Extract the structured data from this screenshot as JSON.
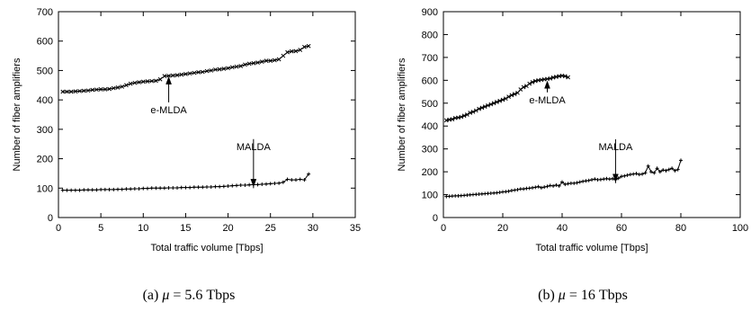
{
  "chart_data": [
    {
      "type": "line",
      "caption_prefix": "(a) ",
      "caption_mu": "μ",
      "caption_suffix": " = 5.6 Tbps",
      "xlabel": "Total traffic volume [Tbps]",
      "ylabel": "Number of fiber amplifiers",
      "xlim": [
        0,
        35
      ],
      "ylim": [
        0,
        700
      ],
      "xticks": [
        0,
        5,
        10,
        15,
        20,
        25,
        30,
        35
      ],
      "yticks": [
        0,
        100,
        200,
        300,
        400,
        500,
        600,
        700
      ],
      "grid": false,
      "series": [
        {
          "marker": "x",
          "color": "#000000",
          "x": [
            0.5,
            1.0,
            1.5,
            2.0,
            2.5,
            3.0,
            3.5,
            4.0,
            4.5,
            5.0,
            5.5,
            6.0,
            6.5,
            7.0,
            7.5,
            8.0,
            8.5,
            9.0,
            9.5,
            10.0,
            10.5,
            11.0,
            11.5,
            12.0,
            12.5,
            13.0,
            13.5,
            14.0,
            14.5,
            15.0,
            15.5,
            16.0,
            16.5,
            17.0,
            17.5,
            18.0,
            18.5,
            19.0,
            19.5,
            20.0,
            20.5,
            21.0,
            21.5,
            22.0,
            22.5,
            23.0,
            23.5,
            24.0,
            24.5,
            25.0,
            25.5,
            26.0,
            26.5,
            27.0,
            27.5,
            28.0,
            28.5,
            29.0,
            29.5
          ],
          "y": [
            428,
            428,
            428,
            429,
            430,
            431,
            432,
            434,
            435,
            436,
            436,
            437,
            440,
            442,
            445,
            450,
            455,
            458,
            460,
            462,
            463,
            464,
            465,
            470,
            481,
            482,
            483,
            484,
            486,
            488,
            490,
            492,
            494,
            495,
            498,
            500,
            503,
            504,
            506,
            508,
            511,
            513,
            515,
            520,
            523,
            525,
            527,
            530,
            533,
            533,
            535,
            538,
            550,
            562,
            565,
            566,
            570,
            580,
            583
          ]
        },
        {
          "marker": "+",
          "color": "#000000",
          "x": [
            0.5,
            1.0,
            1.5,
            2.0,
            2.5,
            3.0,
            3.5,
            4.0,
            4.5,
            5.0,
            5.5,
            6.0,
            6.5,
            7.0,
            7.5,
            8.0,
            8.5,
            9.0,
            9.5,
            10.0,
            10.5,
            11.0,
            11.5,
            12.0,
            12.5,
            13.0,
            13.5,
            14.0,
            14.5,
            15.0,
            15.5,
            16.0,
            16.5,
            17.0,
            17.5,
            18.0,
            18.5,
            19.0,
            19.5,
            20.0,
            20.5,
            21.0,
            21.5,
            22.0,
            22.5,
            23.0,
            23.5,
            24.0,
            24.5,
            25.0,
            25.5,
            26.0,
            26.5,
            27.0,
            27.5,
            28.0,
            28.5,
            29.0,
            29.5
          ],
          "y": [
            93,
            93,
            93,
            93,
            93,
            94,
            94,
            94,
            94,
            95,
            95,
            95,
            95,
            96,
            96,
            97,
            97,
            98,
            98,
            99,
            99,
            100,
            100,
            100,
            100,
            101,
            101,
            101,
            102,
            102,
            102,
            103,
            103,
            103,
            104,
            104,
            105,
            105,
            106,
            107,
            108,
            109,
            110,
            110,
            111,
            112,
            112,
            113,
            114,
            115,
            116,
            117,
            120,
            130,
            128,
            128,
            130,
            128,
            148
          ]
        }
      ],
      "annotations": [
        {
          "text": "e-MLDA",
          "x": 13,
          "y": 484,
          "tx": 13,
          "ty": 355
        },
        {
          "text": "MALDA",
          "x": 23,
          "y": 112,
          "tx": 23,
          "ty": 230
        }
      ]
    },
    {
      "type": "line",
      "caption_prefix": "(b) ",
      "caption_mu": "μ",
      "caption_suffix": " = 16 Tbps",
      "xlabel": "Total traffic volume [Tbps]",
      "ylabel": "Number of fiber amplifiers",
      "xlim": [
        0,
        100
      ],
      "ylim": [
        0,
        900
      ],
      "xticks": [
        0,
        20,
        40,
        60,
        80,
        100
      ],
      "yticks": [
        0,
        100,
        200,
        300,
        400,
        500,
        600,
        700,
        800,
        900
      ],
      "grid": false,
      "series": [
        {
          "marker": "x",
          "color": "#000000",
          "x": [
            1,
            2,
            3,
            4,
            5,
            6,
            7,
            8,
            9,
            10,
            11,
            12,
            13,
            14,
            15,
            16,
            17,
            18,
            19,
            20,
            21,
            22,
            23,
            24,
            25,
            26,
            27,
            28,
            29,
            30,
            31,
            32,
            33,
            34,
            35,
            36,
            37,
            38,
            39,
            40,
            41,
            42
          ],
          "y": [
            425,
            428,
            430,
            435,
            437,
            440,
            445,
            450,
            458,
            462,
            468,
            475,
            480,
            485,
            490,
            495,
            500,
            505,
            510,
            515,
            520,
            528,
            535,
            540,
            545,
            560,
            570,
            575,
            585,
            592,
            597,
            600,
            602,
            604,
            606,
            608,
            612,
            615,
            618,
            620,
            618,
            613
          ]
        },
        {
          "marker": "+",
          "color": "#000000",
          "x": [
            1,
            2,
            3,
            4,
            5,
            6,
            7,
            8,
            9,
            10,
            11,
            12,
            13,
            14,
            15,
            16,
            17,
            18,
            19,
            20,
            21,
            22,
            23,
            24,
            25,
            26,
            27,
            28,
            29,
            30,
            31,
            32,
            33,
            34,
            35,
            36,
            37,
            38,
            39,
            40,
            41,
            42,
            43,
            44,
            45,
            46,
            47,
            48,
            49,
            50,
            51,
            52,
            53,
            54,
            55,
            56,
            57,
            58,
            59,
            60,
            61,
            62,
            63,
            64,
            65,
            66,
            67,
            68,
            69,
            70,
            71,
            72,
            73,
            74,
            75,
            76,
            77,
            78,
            79,
            80
          ],
          "y": [
            92,
            93,
            94,
            95,
            95,
            96,
            97,
            98,
            99,
            100,
            101,
            102,
            103,
            104,
            105,
            106,
            107,
            108,
            110,
            112,
            113,
            115,
            118,
            120,
            122,
            125,
            125,
            127,
            128,
            130,
            132,
            135,
            130,
            133,
            136,
            140,
            138,
            142,
            138,
            155,
            145,
            148,
            150,
            150,
            152,
            155,
            158,
            160,
            162,
            165,
            168,
            165,
            166,
            168,
            170,
            168,
            170,
            165,
            172,
            180,
            182,
            185,
            188,
            190,
            192,
            188,
            190,
            195,
            225,
            200,
            195,
            215,
            200,
            208,
            205,
            210,
            215,
            205,
            210,
            250
          ]
        }
      ],
      "annotations": [
        {
          "text": "e-MLDA",
          "x": 35,
          "y": 604,
          "tx": 35,
          "ty": 500
        },
        {
          "text": "MALDA",
          "x": 58,
          "y": 166,
          "tx": 58,
          "ty": 295
        }
      ]
    }
  ]
}
